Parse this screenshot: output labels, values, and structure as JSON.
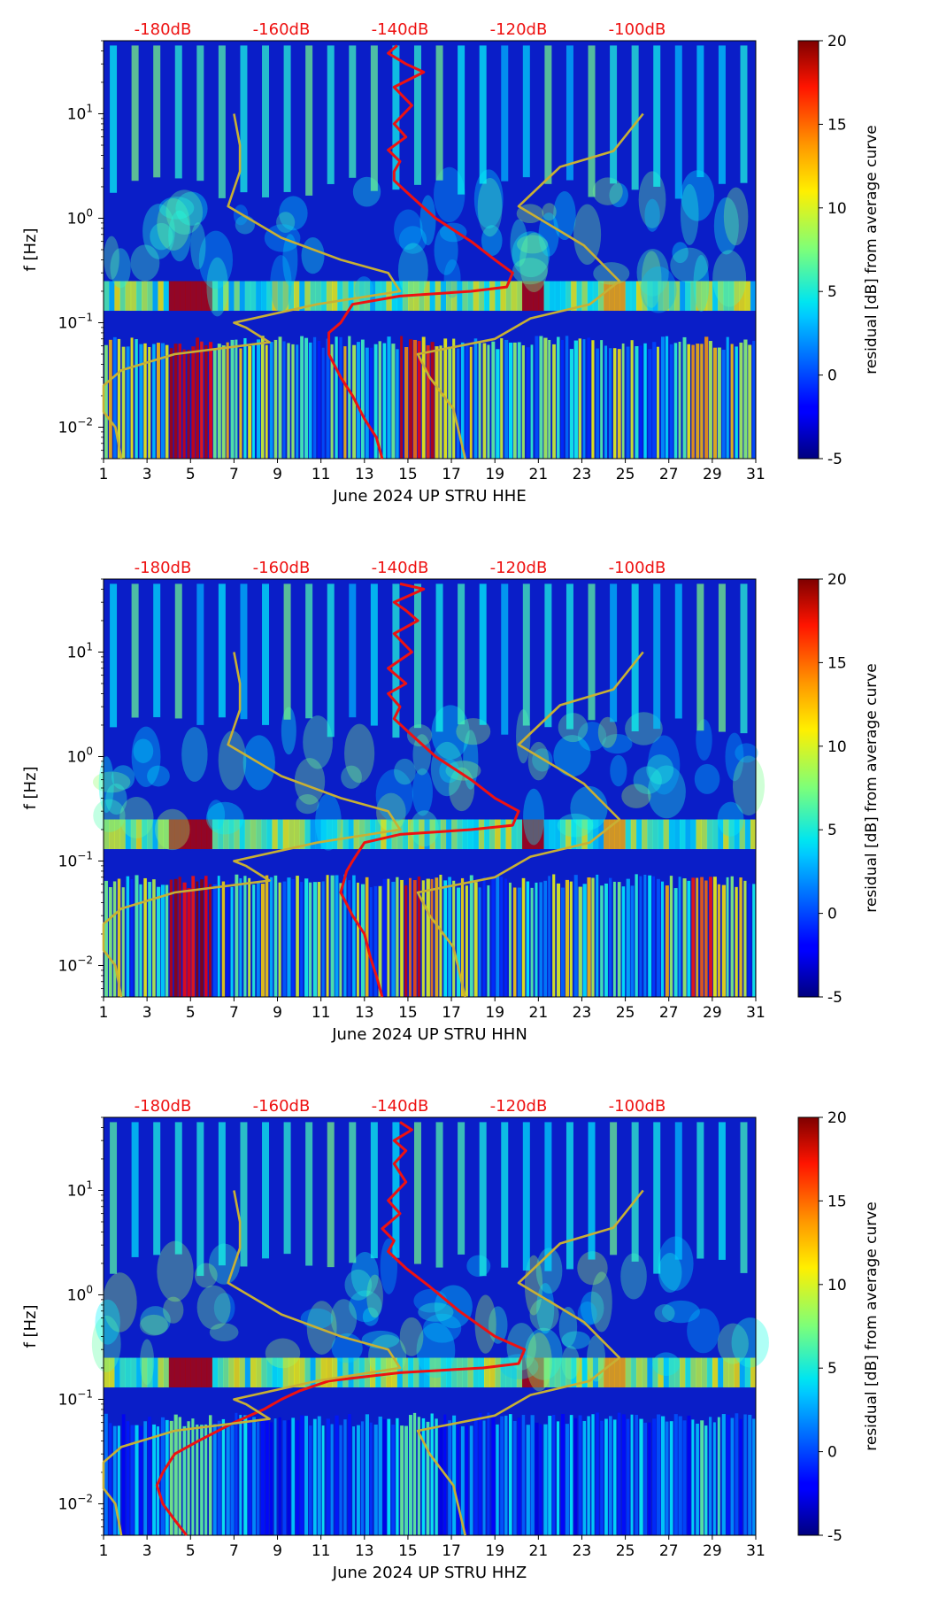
{
  "colors": {
    "mean_curve": "#ee1111",
    "noise_model": "#c8b034",
    "db_label": "#ee1111",
    "axis": "#000000"
  },
  "chart_data": [
    {
      "type": "heatmap",
      "title": "",
      "xlabel": "June 2024 UP STRU  HHE",
      "ylabel": "f [Hz]",
      "xlim": [
        1,
        31
      ],
      "xticks": [
        1,
        3,
        5,
        7,
        9,
        11,
        13,
        15,
        17,
        19,
        21,
        23,
        25,
        27,
        29,
        31
      ],
      "yscale": "log",
      "ylim": [
        0.005,
        50
      ],
      "yticks": [
        {
          "value": 0.01,
          "base": "10",
          "exp": "−2"
        },
        {
          "value": 0.1,
          "base": "10",
          "exp": "−1"
        },
        {
          "value": 1,
          "base": "10",
          "exp": "0"
        },
        {
          "value": 10,
          "base": "10",
          "exp": "1"
        }
      ],
      "top_axis": {
        "label_color": "#ee1111",
        "ticks": [
          {
            "db": -180,
            "label": "-180dB"
          },
          {
            "db": -160,
            "label": "-160dB"
          },
          {
            "db": -140,
            "label": "-140dB"
          },
          {
            "db": -120,
            "label": "-120dB"
          },
          {
            "db": -100,
            "label": "-100dB"
          }
        ]
      },
      "colorbar": {
        "label": "residual [dB] from average curve",
        "range": [
          -5,
          20
        ],
        "ticks": [
          -5,
          0,
          5,
          10,
          15,
          20
        ],
        "colormap": "jet"
      },
      "overlays": [
        {
          "name": "mean PSD curve",
          "color": "#ee1111",
          "points_db_hz": [
            [
              -140.5,
              45
            ],
            [
              -142,
              38
            ],
            [
              -139,
              30
            ],
            [
              -136,
              25
            ],
            [
              -141,
              18
            ],
            [
              -138,
              12
            ],
            [
              -141,
              8
            ],
            [
              -139,
              6
            ],
            [
              -142,
              4.5
            ],
            [
              -140,
              3.5
            ],
            [
              -141,
              2.8
            ],
            [
              -141,
              2.3
            ],
            [
              -138,
              1.6
            ],
            [
              -134,
              1
            ],
            [
              -128,
              0.6
            ],
            [
              -124,
              0.4
            ],
            [
              -121,
              0.3
            ],
            [
              -122,
              0.22
            ],
            [
              -128,
              0.2
            ],
            [
              -140,
              0.18
            ],
            [
              -148,
              0.15
            ],
            [
              -150,
              0.1
            ],
            [
              -152,
              0.08
            ],
            [
              -152,
              0.05
            ],
            [
              -150,
              0.03
            ],
            [
              -148,
              0.02
            ],
            [
              -146,
              0.012
            ],
            [
              -144,
              0.008
            ],
            [
              -143,
              0.005
            ]
          ]
        },
        {
          "name": "noise model envelope",
          "color": "#c8b034",
          "points_db_hz": [
            [
              -168,
              10
            ],
            [
              -167,
              5
            ],
            [
              -167,
              2.8
            ],
            [
              -169,
              1.3
            ],
            [
              -160,
              0.65
            ],
            [
              -150,
              0.4
            ],
            [
              -142,
              0.3
            ],
            [
              -140,
              0.2
            ],
            [
              -154,
              0.15
            ],
            [
              -168,
              0.1
            ],
            [
              -166,
              0.09
            ],
            [
              -162,
              0.065
            ],
            [
              -178,
              0.05
            ],
            [
              -187,
              0.035
            ],
            [
              -190,
              0.025
            ],
            [
              -190,
              0.014
            ],
            [
              -188,
              0.01
            ],
            [
              -187,
              0.005
            ]
          ]
        },
        {
          "name": "noise model envelope (high)",
          "color": "#c8b034",
          "points_db_hz": [
            [
              -99,
              10
            ],
            [
              -104,
              4.4
            ],
            [
              -113,
              3.1
            ],
            [
              -120,
              1.3
            ],
            [
              -109,
              0.55
            ],
            [
              -103,
              0.25
            ],
            [
              -108,
              0.15
            ],
            [
              -118,
              0.11
            ],
            [
              -124,
              0.07
            ],
            [
              -137,
              0.05
            ],
            [
              -135,
              0.03
            ],
            [
              -131,
              0.015
            ],
            [
              -129,
              0.005
            ]
          ]
        }
      ]
    },
    {
      "type": "heatmap",
      "title": "",
      "xlabel": "June 2024 UP STRU  HHN",
      "ylabel": "f [Hz]",
      "xlim": [
        1,
        31
      ],
      "xticks": [
        1,
        3,
        5,
        7,
        9,
        11,
        13,
        15,
        17,
        19,
        21,
        23,
        25,
        27,
        29,
        31
      ],
      "yscale": "log",
      "ylim": [
        0.005,
        50
      ],
      "yticks": [
        {
          "value": 0.01,
          "base": "10",
          "exp": "−2"
        },
        {
          "value": 0.1,
          "base": "10",
          "exp": "−1"
        },
        {
          "value": 1,
          "base": "10",
          "exp": "0"
        },
        {
          "value": 10,
          "base": "10",
          "exp": "1"
        }
      ],
      "top_axis": {
        "label_color": "#ee1111",
        "ticks": [
          {
            "db": -180,
            "label": "-180dB"
          },
          {
            "db": -160,
            "label": "-160dB"
          },
          {
            "db": -140,
            "label": "-140dB"
          },
          {
            "db": -120,
            "label": "-120dB"
          },
          {
            "db": -100,
            "label": "-100dB"
          }
        ]
      },
      "colorbar": {
        "label": "residual [dB] from average curve",
        "range": [
          -5,
          20
        ],
        "ticks": [
          -5,
          0,
          5,
          10,
          15,
          20
        ],
        "colormap": "jet"
      },
      "overlays": [
        {
          "name": "mean PSD curve",
          "color": "#ee1111",
          "points_db_hz": [
            [
              -140,
              45
            ],
            [
              -136,
              40
            ],
            [
              -141,
              30
            ],
            [
              -139,
              25
            ],
            [
              -137,
              20
            ],
            [
              -141,
              15
            ],
            [
              -138,
              10
            ],
            [
              -142,
              7
            ],
            [
              -139,
              5
            ],
            [
              -142,
              4
            ],
            [
              -140,
              3
            ],
            [
              -141,
              2.3
            ],
            [
              -138,
              1.6
            ],
            [
              -134,
              1
            ],
            [
              -128,
              0.6
            ],
            [
              -124,
              0.4
            ],
            [
              -120,
              0.3
            ],
            [
              -121,
              0.22
            ],
            [
              -128,
              0.2
            ],
            [
              -140,
              0.18
            ],
            [
              -146,
              0.15
            ],
            [
              -148,
              0.1
            ],
            [
              -149,
              0.08
            ],
            [
              -150,
              0.05
            ],
            [
              -148,
              0.03
            ],
            [
              -146,
              0.02
            ],
            [
              -145,
              0.012
            ],
            [
              -144,
              0.008
            ],
            [
              -143,
              0.005
            ]
          ]
        },
        {
          "name": "noise model envelope",
          "color": "#c8b034",
          "points_db_hz": [
            [
              -168,
              10
            ],
            [
              -167,
              5
            ],
            [
              -167,
              2.8
            ],
            [
              -169,
              1.3
            ],
            [
              -160,
              0.65
            ],
            [
              -150,
              0.4
            ],
            [
              -142,
              0.3
            ],
            [
              -140,
              0.2
            ],
            [
              -154,
              0.15
            ],
            [
              -168,
              0.1
            ],
            [
              -166,
              0.09
            ],
            [
              -162,
              0.065
            ],
            [
              -178,
              0.05
            ],
            [
              -187,
              0.035
            ],
            [
              -190,
              0.025
            ],
            [
              -190,
              0.014
            ],
            [
              -188,
              0.01
            ],
            [
              -187,
              0.005
            ]
          ]
        },
        {
          "name": "noise model envelope (high)",
          "color": "#c8b034",
          "points_db_hz": [
            [
              -99,
              10
            ],
            [
              -104,
              4.4
            ],
            [
              -113,
              3.1
            ],
            [
              -120,
              1.3
            ],
            [
              -109,
              0.55
            ],
            [
              -103,
              0.25
            ],
            [
              -108,
              0.15
            ],
            [
              -118,
              0.11
            ],
            [
              -124,
              0.07
            ],
            [
              -137,
              0.05
            ],
            [
              -135,
              0.03
            ],
            [
              -131,
              0.015
            ],
            [
              -129,
              0.005
            ]
          ]
        }
      ]
    },
    {
      "type": "heatmap",
      "title": "",
      "xlabel": "June 2024 UP STRU  HHZ",
      "ylabel": "f [Hz]",
      "xlim": [
        1,
        31
      ],
      "xticks": [
        1,
        3,
        5,
        7,
        9,
        11,
        13,
        15,
        17,
        19,
        21,
        23,
        25,
        27,
        29,
        31
      ],
      "yscale": "log",
      "ylim": [
        0.005,
        50
      ],
      "yticks": [
        {
          "value": 0.01,
          "base": "10",
          "exp": "−2"
        },
        {
          "value": 0.1,
          "base": "10",
          "exp": "−1"
        },
        {
          "value": 1,
          "base": "10",
          "exp": "0"
        },
        {
          "value": 10,
          "base": "10",
          "exp": "1"
        }
      ],
      "top_axis": {
        "label_color": "#ee1111",
        "ticks": [
          {
            "db": -180,
            "label": "-180dB"
          },
          {
            "db": -160,
            "label": "-160dB"
          },
          {
            "db": -140,
            "label": "-140dB"
          },
          {
            "db": -120,
            "label": "-120dB"
          },
          {
            "db": -100,
            "label": "-100dB"
          }
        ]
      },
      "colorbar": {
        "label": "residual [dB] from average curve",
        "range": [
          -5,
          20
        ],
        "ticks": [
          -5,
          0,
          5,
          10,
          15,
          20
        ],
        "colormap": "jet"
      },
      "overlays": [
        {
          "name": "mean PSD curve",
          "color": "#ee1111",
          "points_db_hz": [
            [
              -140,
              45
            ],
            [
              -138,
              38
            ],
            [
              -141,
              30
            ],
            [
              -139,
              24
            ],
            [
              -141,
              18
            ],
            [
              -139,
              12
            ],
            [
              -142,
              8
            ],
            [
              -140,
              6
            ],
            [
              -143,
              4.3
            ],
            [
              -141,
              3.3
            ],
            [
              -142,
              2.6
            ],
            [
              -139,
              1.8
            ],
            [
              -135,
              1.2
            ],
            [
              -130,
              0.7
            ],
            [
              -124,
              0.4
            ],
            [
              -119,
              0.3
            ],
            [
              -120,
              0.22
            ],
            [
              -126,
              0.2
            ],
            [
              -140,
              0.18
            ],
            [
              -152,
              0.15
            ],
            [
              -157,
              0.12
            ],
            [
              -160,
              0.1
            ],
            [
              -163,
              0.08
            ],
            [
              -168,
              0.06
            ],
            [
              -174,
              0.04
            ],
            [
              -178,
              0.03
            ],
            [
              -180,
              0.02
            ],
            [
              -181,
              0.015
            ],
            [
              -180,
              0.01
            ],
            [
              -178,
              0.007
            ],
            [
              -176,
              0.005
            ]
          ]
        },
        {
          "name": "noise model envelope",
          "color": "#c8b034",
          "points_db_hz": [
            [
              -168,
              10
            ],
            [
              -167,
              5
            ],
            [
              -167,
              2.8
            ],
            [
              -169,
              1.3
            ],
            [
              -160,
              0.65
            ],
            [
              -150,
              0.4
            ],
            [
              -142,
              0.3
            ],
            [
              -140,
              0.2
            ],
            [
              -154,
              0.15
            ],
            [
              -168,
              0.1
            ],
            [
              -166,
              0.09
            ],
            [
              -162,
              0.065
            ],
            [
              -178,
              0.05
            ],
            [
              -187,
              0.035
            ],
            [
              -190,
              0.025
            ],
            [
              -190,
              0.014
            ],
            [
              -188,
              0.01
            ],
            [
              -187,
              0.005
            ]
          ]
        },
        {
          "name": "noise model envelope (high)",
          "color": "#c8b034",
          "points_db_hz": [
            [
              -99,
              10
            ],
            [
              -104,
              4.4
            ],
            [
              -113,
              3.1
            ],
            [
              -120,
              1.3
            ],
            [
              -109,
              0.55
            ],
            [
              -103,
              0.25
            ],
            [
              -108,
              0.15
            ],
            [
              -118,
              0.11
            ],
            [
              -124,
              0.07
            ],
            [
              -137,
              0.05
            ],
            [
              -135,
              0.03
            ],
            [
              -131,
              0.015
            ],
            [
              -129,
              0.005
            ]
          ]
        }
      ]
    }
  ]
}
